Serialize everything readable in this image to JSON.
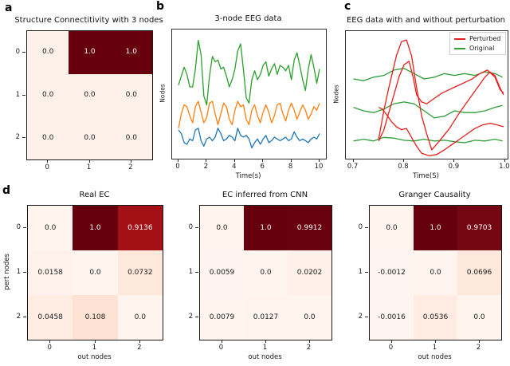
{
  "labels": {
    "a": "a",
    "b": "b",
    "c": "c",
    "d": "d"
  },
  "colors": {
    "dark_red_max": "#67000d",
    "light_base": "#fff4ee",
    "perturbed_red": "#e4201c",
    "original_green": "#2f9e3a",
    "node_green": "#2ca02c",
    "node_orange": "#ff7f0e",
    "node_blue": "#1f77b4"
  },
  "chart_data": [
    {
      "id": "a",
      "type": "heatmap",
      "title": "Structure Connectitivity with 3 nodes",
      "row_labels": [
        "0",
        "1",
        "2"
      ],
      "col_labels": [
        "0",
        "1",
        "2"
      ],
      "xlabel": "",
      "ylabel": "",
      "values": [
        [
          0.0,
          1.0,
          1.0
        ],
        [
          0.0,
          0.0,
          0.0
        ],
        [
          0.0,
          0.0,
          0.0
        ]
      ],
      "cell_text": [
        [
          "0.0",
          "1.0",
          "1.0"
        ],
        [
          "0.0",
          "0.0",
          "0.0"
        ],
        [
          "0.0",
          "0.0",
          "0.0"
        ]
      ],
      "cell_colors": [
        [
          "#fdf1ea",
          "#67000d",
          "#67000d"
        ],
        [
          "#fdf1ea",
          "#fdf1ea",
          "#fdf1ea"
        ],
        [
          "#fdf1ea",
          "#fdf1ea",
          "#fdf1ea"
        ]
      ]
    },
    {
      "id": "b",
      "type": "line",
      "title": "3-node EEG data",
      "xlabel": "Time(s)",
      "ylabel": "Nodes",
      "xlim": [
        -0.45,
        10.45
      ],
      "ylim": [
        0,
        3.6
      ],
      "x_range": [
        0,
        10
      ],
      "x_tick_values": [
        0,
        2,
        4,
        6,
        8,
        10
      ],
      "x_ticks": [
        "0",
        "2",
        "4",
        "6",
        "8",
        "10"
      ],
      "grid": false,
      "series": [
        {
          "name": "node-2-green",
          "color": "#2ca02c",
          "values": [
            2.05,
            2.3,
            2.55,
            2.35,
            2.0,
            2.0,
            2.5,
            3.3,
            2.9,
            1.75,
            1.5,
            2.3,
            2.85,
            2.7,
            2.75,
            2.5,
            2.55,
            2.3,
            2.0,
            2.2,
            2.5,
            3.0,
            3.2,
            2.5,
            1.7,
            1.55,
            2.2,
            2.45,
            2.2,
            2.35,
            2.6,
            2.7,
            2.3,
            2.5,
            2.65,
            2.35,
            2.6,
            2.55,
            2.45,
            2.6,
            2.2,
            2.75,
            2.95,
            2.6,
            2.2,
            1.9,
            2.5,
            2.9,
            2.55,
            2.1,
            2.5
          ]
        },
        {
          "name": "node-1-orange",
          "color": "#ff7f0e",
          "values": [
            0.85,
            1.25,
            1.5,
            1.45,
            1.2,
            1.0,
            1.45,
            1.6,
            1.3,
            1.0,
            1.15,
            1.55,
            1.6,
            1.25,
            0.95,
            1.25,
            1.55,
            1.45,
            1.1,
            0.95,
            1.35,
            1.6,
            1.45,
            1.5,
            1.1,
            0.95,
            1.35,
            1.5,
            1.2,
            1.0,
            1.3,
            1.5,
            1.3,
            1.0,
            1.2,
            1.5,
            1.55,
            1.25,
            1.05,
            1.35,
            1.55,
            1.35,
            1.1,
            1.3,
            1.5,
            1.35,
            1.1,
            1.25,
            1.45,
            1.35,
            1.55
          ]
        },
        {
          "name": "node-0-blue",
          "color": "#1f77b4",
          "values": [
            0.8,
            0.7,
            0.45,
            0.4,
            0.55,
            0.5,
            0.8,
            0.85,
            0.5,
            0.35,
            0.55,
            0.6,
            0.5,
            0.6,
            0.85,
            0.7,
            0.5,
            0.55,
            0.65,
            0.6,
            0.5,
            0.85,
            0.65,
            0.6,
            0.65,
            0.55,
            0.3,
            0.45,
            0.55,
            0.4,
            0.55,
            0.65,
            0.45,
            0.5,
            0.6,
            0.55,
            0.5,
            0.55,
            0.6,
            0.5,
            0.55,
            0.75,
            0.6,
            0.5,
            0.55,
            0.5,
            0.45,
            0.55,
            0.6,
            0.55,
            0.7
          ]
        }
      ]
    },
    {
      "id": "c",
      "type": "line",
      "title": "EEG data with and without perturbation",
      "xlabel": "Time(S)",
      "ylabel": "Nodes",
      "xlim": [
        0.685,
        1.005
      ],
      "ylim": [
        0,
        3.6
      ],
      "x_range": [
        0.7,
        1.0
      ],
      "x_tick_values": [
        0.7,
        0.8,
        0.9,
        1.0
      ],
      "x_ticks": [
        "0.7",
        "0.8",
        "0.9",
        "1.0"
      ],
      "grid": false,
      "legend": [
        {
          "label": "Perturbed",
          "color": "#e4201c"
        },
        {
          "label": "Original",
          "color": "#2f9e3a"
        }
      ],
      "series": [
        {
          "name": "original-node-2",
          "color": "#2f9e3a",
          "x": [
            0.7,
            0.72,
            0.74,
            0.76,
            0.78,
            0.8,
            0.82,
            0.84,
            0.86,
            0.88,
            0.9,
            0.92,
            0.94,
            0.96,
            0.98,
            0.995
          ],
          "values": [
            2.25,
            2.2,
            2.3,
            2.35,
            2.5,
            2.55,
            2.4,
            2.25,
            2.3,
            2.4,
            2.35,
            2.4,
            2.35,
            2.45,
            2.4,
            2.3
          ]
        },
        {
          "name": "original-node-1",
          "color": "#2f9e3a",
          "x": [
            0.7,
            0.72,
            0.74,
            0.76,
            0.78,
            0.8,
            0.82,
            0.84,
            0.86,
            0.88,
            0.9,
            0.92,
            0.94,
            0.96,
            0.98,
            0.995
          ],
          "values": [
            1.45,
            1.35,
            1.3,
            1.4,
            1.55,
            1.6,
            1.55,
            1.35,
            1.15,
            1.2,
            1.35,
            1.3,
            1.3,
            1.35,
            1.45,
            1.5
          ]
        },
        {
          "name": "original-node-0",
          "color": "#2f9e3a",
          "x": [
            0.7,
            0.72,
            0.74,
            0.76,
            0.78,
            0.8,
            0.82,
            0.84,
            0.86,
            0.88,
            0.9,
            0.92,
            0.94,
            0.96,
            0.98,
            0.995
          ],
          "values": [
            0.5,
            0.55,
            0.5,
            0.6,
            0.58,
            0.52,
            0.5,
            0.55,
            0.5,
            0.52,
            0.48,
            0.45,
            0.52,
            0.5,
            0.55,
            0.5
          ]
        },
        {
          "name": "perturbed-node-2",
          "color": "#e4201c",
          "x": [
            0.75,
            0.76,
            0.77,
            0.785,
            0.795,
            0.805,
            0.815,
            0.825,
            0.835,
            0.845,
            0.855,
            0.87,
            0.89,
            0.91,
            0.93,
            0.95,
            0.96,
            0.97,
            0.98,
            0.99,
            0.997
          ],
          "values": [
            0.55,
            1.35,
            2.0,
            2.9,
            3.3,
            3.35,
            2.9,
            2.0,
            1.2,
            0.7,
            0.25,
            0.5,
            0.85,
            1.3,
            1.7,
            2.1,
            2.3,
            2.45,
            2.35,
            2.0,
            1.8
          ]
        },
        {
          "name": "perturbed-node-1",
          "color": "#e4201c",
          "x": [
            0.75,
            0.76,
            0.77,
            0.78,
            0.79,
            0.8,
            0.81,
            0.818,
            0.825,
            0.835,
            0.845,
            0.86,
            0.875,
            0.89,
            0.905,
            0.92,
            0.935,
            0.95,
            0.965,
            0.98,
            0.99,
            0.997
          ],
          "values": [
            0.5,
            0.8,
            1.3,
            1.8,
            2.3,
            2.65,
            2.75,
            2.3,
            1.8,
            1.6,
            1.55,
            1.7,
            1.85,
            1.95,
            2.05,
            2.15,
            2.25,
            2.4,
            2.5,
            2.3,
            1.95,
            1.85
          ]
        },
        {
          "name": "perturbed-node-0",
          "color": "#e4201c",
          "x": [
            0.75,
            0.757,
            0.765,
            0.775,
            0.785,
            0.795,
            0.805,
            0.815,
            0.825,
            0.835,
            0.85,
            0.865,
            0.88,
            0.895,
            0.91,
            0.925,
            0.94,
            0.955,
            0.97,
            0.985,
            0.997
          ],
          "values": [
            1.45,
            1.4,
            1.25,
            1.05,
            0.9,
            0.82,
            0.85,
            0.6,
            0.35,
            0.15,
            0.08,
            0.12,
            0.25,
            0.4,
            0.55,
            0.7,
            0.85,
            0.95,
            1.0,
            0.95,
            0.9
          ]
        }
      ]
    },
    {
      "id": "d1",
      "type": "heatmap",
      "title": "Real EC",
      "row_labels": [
        "0",
        "1",
        "2"
      ],
      "col_labels": [
        "0",
        "1",
        "2"
      ],
      "xlabel": "out nodes",
      "ylabel": "pert nodes",
      "values": [
        [
          0.0,
          1.0,
          0.9136
        ],
        [
          0.0158,
          0.0,
          0.0732
        ],
        [
          0.0458,
          0.108,
          0.0
        ]
      ],
      "cell_text": [
        [
          "0.0",
          "1.0",
          "0.9136"
        ],
        [
          "0.0158",
          "0.0",
          "0.0732"
        ],
        [
          "0.0458",
          "0.108",
          "0.0"
        ]
      ],
      "cell_colors": [
        [
          "#fff4ee",
          "#67000d",
          "#a31016"
        ],
        [
          "#fff2ec",
          "#fff4ee",
          "#fee7db"
        ],
        [
          "#ffece3",
          "#fee2d4",
          "#fff4ee"
        ]
      ]
    },
    {
      "id": "d2",
      "type": "heatmap",
      "title": "EC inferred from CNN",
      "row_labels": [
        "0",
        "1",
        "2"
      ],
      "col_labels": [
        "0",
        "1",
        "2"
      ],
      "xlabel": "out nodes",
      "ylabel": "",
      "values": [
        [
          0.0,
          1.0,
          0.9912
        ],
        [
          0.0059,
          0.0,
          0.0202
        ],
        [
          0.0079,
          0.0127,
          0.0
        ]
      ],
      "cell_text": [
        [
          "0.0",
          "1.0",
          "0.9912"
        ],
        [
          "0.0059",
          "0.0",
          "0.0202"
        ],
        [
          "0.0079",
          "0.0127",
          "0.0"
        ]
      ],
      "cell_colors": [
        [
          "#fff4ee",
          "#67000d",
          "#6a010e"
        ],
        [
          "#fff4ef",
          "#fff4ee",
          "#fff1ea"
        ],
        [
          "#fff4ee",
          "#fff3ed",
          "#fff4ee"
        ]
      ]
    },
    {
      "id": "d3",
      "type": "heatmap",
      "title": "Granger Causality",
      "row_labels": [
        "0",
        "1",
        "2"
      ],
      "col_labels": [
        "0",
        "1",
        "2"
      ],
      "xlabel": "out nodes",
      "ylabel": "",
      "values": [
        [
          0.0,
          1.0,
          0.9703
        ],
        [
          -0.0012,
          0.0,
          0.0696
        ],
        [
          -0.0016,
          0.0536,
          0.0
        ]
      ],
      "cell_text": [
        [
          "0.0",
          "1.0",
          "0.9703"
        ],
        [
          "-0.0012",
          "0.0",
          "0.0696"
        ],
        [
          "-0.0016",
          "0.0536",
          "0.0"
        ]
      ],
      "cell_colors": [
        [
          "#fff4ee",
          "#67000d",
          "#750712"
        ],
        [
          "#fff5f0",
          "#fff4ee",
          "#fee8dc"
        ],
        [
          "#fff5f0",
          "#ffebe1",
          "#fff4ee"
        ]
      ]
    }
  ]
}
